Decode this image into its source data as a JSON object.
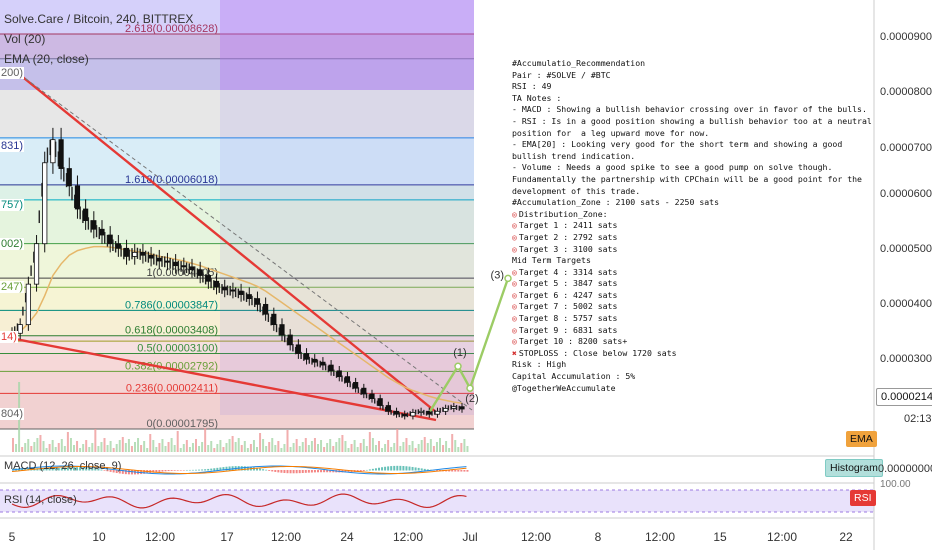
{
  "header": {
    "symbol_line": "Solve.Care / Bitcoin, 240, BITTREX",
    "vol_label": "Vol (20)",
    "ema_label": "EMA (20, close)",
    "macd_label": "MACD (12, 26, close, 9)",
    "rsi_label": "RSI (14, close)"
  },
  "price_axis": {
    "ticks": [
      "0.00009000",
      "0.00008000",
      "0.00007000",
      "0.00006000",
      "0.00005000",
      "0.00004000",
      "0.00003000"
    ],
    "current_price": "0.00002140",
    "countdown": "02:13"
  },
  "indicator_tags": {
    "ema": "EMA",
    "histogram": "Histogram",
    "macd_zero": "0.00000000",
    "rsi_tag": "RSI",
    "rsi_top": "100.00"
  },
  "time_axis": [
    "5",
    "10",
    "12:00",
    "17",
    "12:00",
    "24",
    "12:00",
    "Jul",
    "12:00",
    "8",
    "12:00",
    "15",
    "12:00",
    "22"
  ],
  "fib_levels": [
    {
      "label": "2.618(0.00008628)",
      "ratio": 2.618,
      "price": 8.628e-05,
      "color": "#b71c1c"
    },
    {
      "label": "1.618(0.00006018)",
      "ratio": 1.618,
      "price": 6.018e-05,
      "color": "#283593"
    },
    {
      "label": "1(0.00004405)",
      "ratio": 1,
      "price": 4.405e-05,
      "color": "#424242"
    },
    {
      "label": "0.786(0.00003847)",
      "ratio": 0.786,
      "price": 3.847e-05,
      "color": "#00897b"
    },
    {
      "label": "0.618(0.00003408)",
      "ratio": 0.618,
      "price": 3.408e-05,
      "color": "#2e7d32"
    },
    {
      "label": "0.5(0.00003100)",
      "ratio": 0.5,
      "price": 3.1e-05,
      "color": "#388e3c"
    },
    {
      "label": "0.382(0.00002792)",
      "ratio": 0.382,
      "price": 2.792e-05,
      "color": "#689f38"
    },
    {
      "label": "0.236(0.00002411)",
      "ratio": 0.236,
      "price": 2.411e-05,
      "color": "#e53935"
    },
    {
      "label": "0(0.00001795)",
      "ratio": 0,
      "price": 1.795e-05,
      "color": "#616161"
    }
  ],
  "left_cut_labels": [
    "200)",
    "831)",
    "757)",
    "002)",
    "247)",
    "14)",
    "804)"
  ],
  "projection_labels": [
    "(1)",
    "(2)",
    "(3)"
  ],
  "notes": [
    "#Accumulatio_Recommendation",
    "Pair : #SOLVE / #BTC",
    "RSI : 49",
    "TA Notes :",
    "- MACD : Showing a bullish behavior crossing over in favor of the bulls.",
    "- RSI : Is in a good position showing a bullish behavior too at a neutral position for  a leg upward move for now.",
    "- EMA[20] : Looking very good for the short term and showing a good bullish trend indication.",
    "- Volume : Needs a good spike to see a good pump on solve though.",
    "Fundamentally the partnership with CPChain will be a good point for the development of this trade.",
    "#Accumulation_Zone : 2100 sats - 2250 sats",
    "Distribution_Zone:",
    "Target 1 : 2411 sats",
    "Target 2 : 2792 sats",
    "Target 3 : 3100 sats",
    "Mid Term Targets",
    "Target 4 : 3314 sats",
    "Target 5 : 3847 sats",
    "Target 6 : 4247 sats",
    "Target 7 : 5002 sats",
    "Target 8 : 5757 sats",
    "Target 9 : 6831 sats",
    "Target 10 : 8200 sats+",
    "STOPLOSS : Close below 1720 sats",
    "Risk : High",
    "Capital Accumulation : 5%",
    "@TogetherWeAccumulate"
  ],
  "chart_data": {
    "type": "candlestick",
    "title": "Solve.Care / Bitcoin, 240, BITTREX",
    "ylim": [
      1.8e-05,
      9.5e-05
    ],
    "series": [
      {
        "name": "price",
        "values": [
          3.45e-05,
          3.6e-05,
          4.3e-05,
          5e-05,
          6.4e-05,
          6.8e-05,
          6.3e-05,
          6e-05,
          5.6e-05,
          5.4e-05,
          5.25e-05,
          5.15e-05,
          5e-05,
          4.92e-05,
          4.78e-05,
          4.85e-05,
          4.8e-05,
          4.75e-05,
          4.7e-05,
          4.68e-05,
          4.62e-05,
          4.6e-05,
          4.55e-05,
          4.45e-05,
          4.35e-05,
          4.25e-05,
          4.2e-05,
          4.18e-05,
          4.12e-05,
          4.05e-05,
          3.95e-05,
          3.78e-05,
          3.6e-05,
          3.42e-05,
          3.25e-05,
          3.1e-05,
          3e-05,
          2.95e-05,
          2.9e-05,
          2.8e-05,
          2.7e-05,
          2.6e-05,
          2.5e-05,
          2.4e-05,
          2.32e-05,
          2.2e-05,
          2.1e-05,
          2.05e-05,
          2.02e-05,
          2.08e-05,
          2.1e-05,
          2.05e-05,
          2.1e-05,
          2.15e-05,
          2.18e-05,
          2.14e-05
        ]
      },
      {
        "name": "EMA (20, close)",
        "values": [
          3.45e-05,
          3.48e-05,
          3.62e-05,
          3.8e-05,
          4.1e-05,
          4.45e-05,
          4.65e-05,
          4.8e-05,
          4.88e-05,
          4.92e-05,
          4.95e-05,
          4.95e-05,
          4.94e-05,
          4.92e-05,
          4.89e-05,
          4.87e-05,
          4.85e-05,
          4.82e-05,
          4.78e-05,
          4.76e-05,
          4.73e-05,
          4.7e-05,
          4.66e-05,
          4.62e-05,
          4.57e-05,
          4.52e-05,
          4.47e-05,
          4.42e-05,
          4.37e-05,
          4.32e-05,
          4.26e-05,
          4.18e-05,
          4.08e-05,
          3.98e-05,
          3.88e-05,
          3.78e-05,
          3.68e-05,
          3.58e-05,
          3.48e-05,
          3.38e-05,
          3.28e-05,
          3.18e-05,
          3.08e-05,
          2.98e-05,
          2.88e-05,
          2.78e-05,
          2.68e-05,
          2.6e-05,
          2.52e-05,
          2.46e-05,
          2.41e-05,
          2.36e-05,
          2.32e-05,
          2.29e-05,
          2.26e-05,
          2.24e-05
        ]
      }
    ],
    "projection": [
      {
        "label": "(1)",
        "price": 2.88e-05
      },
      {
        "label": "(2)",
        "price": 2.5e-05
      },
      {
        "label": "(3)",
        "price": 4.4e-05
      }
    ]
  }
}
